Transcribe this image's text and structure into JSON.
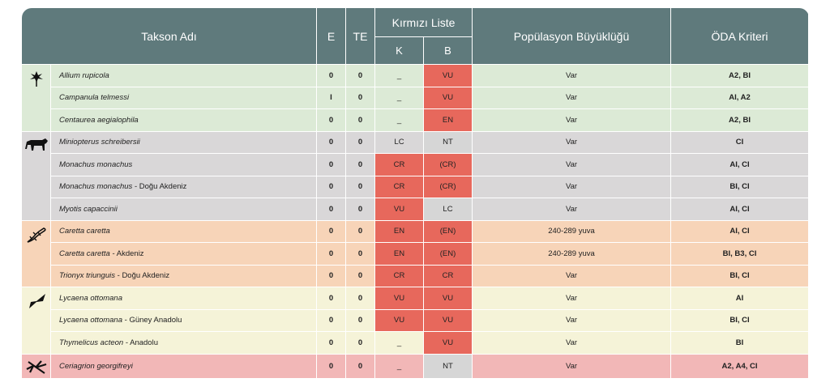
{
  "header": {
    "takson": "Takson Adı",
    "e": "E",
    "te": "TE",
    "kirmizi": "Kırmızı Liste",
    "k": "K",
    "b": "B",
    "pop": "Popülasyon Büyüklüğü",
    "oda": "ÖDA Kriteri"
  },
  "groups": [
    {
      "icon": "flower-icon",
      "rows": [
        {
          "italic": "Allium rupicola",
          "suffix": "",
          "e": "0",
          "te": "0",
          "k": "_",
          "b": "VU",
          "pop": "Var",
          "oda": "A2, BI"
        },
        {
          "italic": "Campanula telmessi",
          "suffix": "",
          "e": "I",
          "te": "0",
          "k": "_",
          "b": "VU",
          "pop": "Var",
          "oda": "AI, A2"
        },
        {
          "italic": "Centaurea aegialophila",
          "suffix": "",
          "e": "0",
          "te": "0",
          "k": "_",
          "b": "EN",
          "pop": "Var",
          "oda": "A2, BI"
        }
      ]
    },
    {
      "icon": "mammal-icon",
      "rows": [
        {
          "italic": "Miniopterus schreibersii",
          "suffix": "",
          "e": "0",
          "te": "0",
          "k": "LC",
          "b": "NT",
          "pop": "Var",
          "oda": "CI"
        },
        {
          "italic": "Monachus monachus",
          "suffix": "",
          "e": "0",
          "te": "0",
          "k": "CR",
          "b": "(CR)",
          "pop": "Var",
          "oda": "AI, CI"
        },
        {
          "italic": "Monachus monachus",
          "suffix": " - Doğu Akdeniz",
          "e": "0",
          "te": "0",
          "k": "CR",
          "b": "(CR)",
          "pop": "Var",
          "oda": "BI, CI"
        },
        {
          "italic": "Myotis capaccinii",
          "suffix": "",
          "e": "0",
          "te": "0",
          "k": "VU",
          "b": "LC",
          "pop": "Var",
          "oda": "AI, CI"
        }
      ]
    },
    {
      "icon": "lizard-icon",
      "rows": [
        {
          "italic": "Caretta caretta",
          "suffix": "",
          "e": "0",
          "te": "0",
          "k": "EN",
          "b": "(EN)",
          "pop": "240-289 yuva",
          "oda": "AI, CI"
        },
        {
          "italic": "Caretta caretta",
          "suffix": " - Akdeniz",
          "e": "0",
          "te": "0",
          "k": "EN",
          "b": "(EN)",
          "pop": "240-289 yuva",
          "oda": "BI, B3, CI"
        },
        {
          "italic": "Trionyx triunguis",
          "suffix": " - Doğu Akdeniz",
          "e": "0",
          "te": "0",
          "k": "CR",
          "b": "CR",
          "pop": "Var",
          "oda": "BI, CI"
        }
      ]
    },
    {
      "icon": "butterfly-icon",
      "rows": [
        {
          "italic": "Lycaena ottomana",
          "suffix": "",
          "e": "0",
          "te": "0",
          "k": "VU",
          "b": "VU",
          "pop": "Var",
          "oda": "AI"
        },
        {
          "italic": "Lycaena ottomana",
          "suffix": " - Güney Anadolu",
          "e": "0",
          "te": "0",
          "k": "VU",
          "b": "VU",
          "pop": "Var",
          "oda": "BI, CI"
        },
        {
          "italic": "Thymelicus acteon",
          "suffix": " - Anadolu",
          "e": "0",
          "te": "0",
          "k": "_",
          "b": "VU",
          "pop": "Var",
          "oda": "BI"
        }
      ]
    },
    {
      "icon": "dragonfly-icon",
      "rows": [
        {
          "italic": "Ceriagrion georgifreyi",
          "suffix": "",
          "e": "0",
          "te": "0",
          "k": "_",
          "b": "NT",
          "pop": "Var",
          "oda": "A2, A4, CI"
        }
      ]
    }
  ]
}
